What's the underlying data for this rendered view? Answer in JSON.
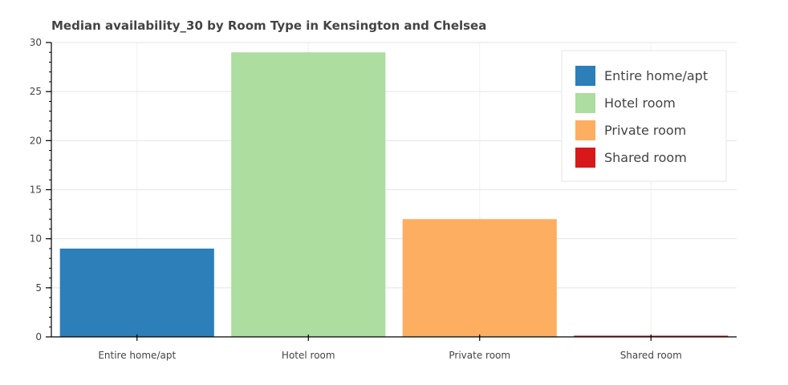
{
  "chart_data": {
    "type": "bar",
    "title": "Median availability_30 by Room Type in Kensington and Chelsea",
    "xlabel": "",
    "ylabel": "",
    "categories": [
      "Entire home/apt",
      "Hotel room",
      "Private room",
      "Shared room"
    ],
    "values": [
      9,
      29,
      12,
      0
    ],
    "colors": [
      "#2c7fb8",
      "#addd9f",
      "#fdae61",
      "#d7191c"
    ],
    "ylim": [
      0,
      30
    ],
    "yticks": [
      "0",
      "5",
      "10",
      "15",
      "20",
      "25",
      "30"
    ],
    "grid": true,
    "legend": {
      "placement": "top-right",
      "entries": [
        "Entire home/apt",
        "Hotel room",
        "Private room",
        "Shared room"
      ]
    }
  }
}
